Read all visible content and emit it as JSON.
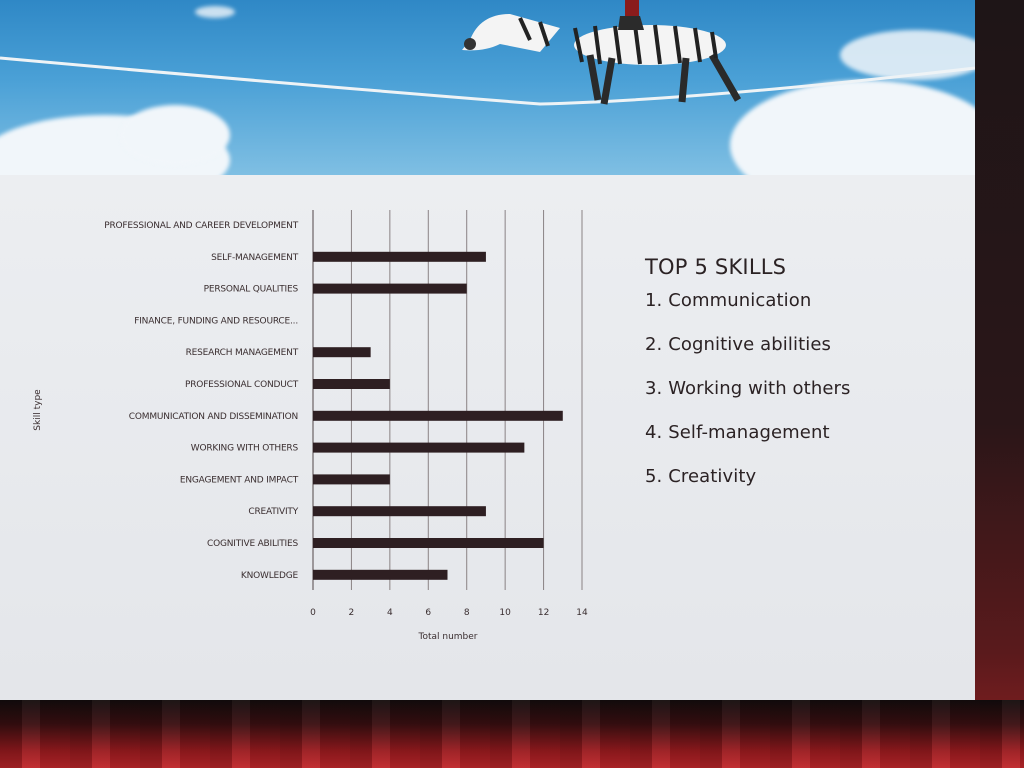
{
  "slide": {
    "top_skills_title": "TOP 5 SKILLS",
    "top_skills": [
      "1. Communication",
      "2. Cognitive abilities",
      "3. Working with others",
      "4. Self-management",
      "5. Creativity"
    ]
  },
  "chart_data": {
    "type": "bar",
    "orientation": "horizontal",
    "categories": [
      "PROFESSIONAL AND CAREER DEVELOPMENT",
      "SELF-MANAGEMENT",
      "PERSONAL QUALITIES",
      "FINANCE, FUNDING AND RESOURCE...",
      "RESEARCH MANAGEMENT",
      "PROFESSIONAL CONDUCT",
      "COMMUNICATION AND DISSEMINATION",
      "WORKING WITH OTHERS",
      "ENGAGEMENT AND IMPACT",
      "CREATIVITY",
      "COGNITIVE ABILITIES",
      "KNOWLEDGE"
    ],
    "values": [
      0,
      9,
      8,
      0,
      3,
      4,
      13,
      11,
      4,
      9,
      12,
      7
    ],
    "xlabel": "Total number",
    "ylabel": "Skill type",
    "xlim": [
      0,
      14
    ],
    "xticks": [
      "0",
      "2",
      "4",
      "6",
      "8",
      "10",
      "12",
      "14"
    ],
    "grid": "vertical",
    "bar_color": "#2e1f22"
  },
  "colors": {
    "sky": "#4aa0d6",
    "slide_background": "#e6e8eb",
    "text": "#2b2224",
    "stage_red": "#c0272b"
  },
  "icons": {
    "banner_image": "zebra-on-tightrope-icon"
  }
}
